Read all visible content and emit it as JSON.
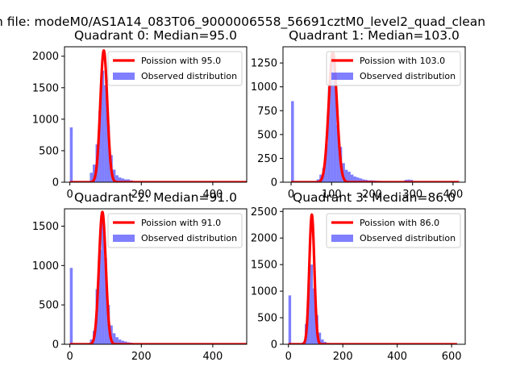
{
  "figure": {
    "suptitle": "n file: modeM0/AS1A14_083T06_9000006558_56691cztM0_level2_quad_clean"
  },
  "colors": {
    "poisson": "#ff0000",
    "observed": "#0000ff"
  },
  "chart_data": [
    {
      "type": "bar",
      "title": "Quadrant 0: Median=95.0",
      "median": 95,
      "xlim": [
        -15,
        495
      ],
      "ylim": [
        0,
        2150
      ],
      "xticks": [
        0,
        200,
        400
      ],
      "yticks": [
        0,
        500,
        1000,
        1500,
        2000
      ],
      "legend": {
        "placement": "top-right",
        "entries": [
          "Poission with 95.0",
          "Observed distribution"
        ]
      },
      "poisson": {
        "name": "Poission with 95.0",
        "lambda": 95,
        "x_range": [
          0,
          495
        ],
        "peak": 2090
      },
      "observed": {
        "name": "Observed distribution",
        "bin_width": 8,
        "bins": [
          [
            0,
            870
          ],
          [
            8,
            8
          ],
          [
            16,
            10
          ],
          [
            24,
            12
          ],
          [
            56,
            150
          ],
          [
            64,
            280
          ],
          [
            72,
            600
          ],
          [
            80,
            1130
          ],
          [
            88,
            1770
          ],
          [
            96,
            1540
          ],
          [
            104,
            900
          ],
          [
            112,
            430
          ],
          [
            120,
            200
          ],
          [
            128,
            110
          ],
          [
            136,
            75
          ],
          [
            144,
            60
          ],
          [
            152,
            45
          ],
          [
            160,
            45
          ],
          [
            168,
            30
          ],
          [
            176,
            20
          ],
          [
            184,
            12
          ],
          [
            192,
            8
          ],
          [
            200,
            5
          ],
          [
            208,
            4
          ],
          [
            216,
            3
          ],
          [
            224,
            2
          ],
          [
            240,
            2
          ],
          [
            272,
            2
          ],
          [
            320,
            1
          ],
          [
            400,
            1
          ]
        ]
      }
    },
    {
      "type": "bar",
      "title": "Quadrant 1: Median=103.0",
      "median": 103,
      "xlim": [
        -20,
        430
      ],
      "ylim": [
        0,
        1420
      ],
      "xticks": [
        0,
        100,
        200,
        300,
        400
      ],
      "yticks": [
        0,
        250,
        500,
        750,
        1000,
        1250
      ],
      "legend": {
        "placement": "top-right",
        "entries": [
          "Poission with 103.0",
          "Observed distribution"
        ]
      },
      "poisson": {
        "name": "Poission with 103.0",
        "lambda": 103,
        "x_range": [
          0,
          415
        ],
        "peak": 1360
      },
      "observed": {
        "name": "Observed distribution",
        "bin_width": 7,
        "bins": [
          [
            0,
            850
          ],
          [
            7,
            8
          ],
          [
            14,
            5
          ],
          [
            21,
            4
          ],
          [
            56,
            10
          ],
          [
            63,
            30
          ],
          [
            70,
            80
          ],
          [
            77,
            150
          ],
          [
            84,
            400
          ],
          [
            91,
            1000
          ],
          [
            98,
            1300
          ],
          [
            105,
            1140
          ],
          [
            112,
            600
          ],
          [
            119,
            370
          ],
          [
            126,
            200
          ],
          [
            133,
            130
          ],
          [
            140,
            110
          ],
          [
            147,
            80
          ],
          [
            154,
            60
          ],
          [
            161,
            50
          ],
          [
            168,
            40
          ],
          [
            175,
            30
          ],
          [
            182,
            25
          ],
          [
            189,
            20
          ],
          [
            196,
            20
          ],
          [
            203,
            18
          ],
          [
            210,
            15
          ],
          [
            217,
            14
          ],
          [
            224,
            13
          ],
          [
            231,
            12
          ],
          [
            238,
            12
          ],
          [
            245,
            11
          ],
          [
            252,
            10
          ],
          [
            259,
            10
          ],
          [
            266,
            10
          ],
          [
            273,
            10
          ],
          [
            280,
            25
          ],
          [
            287,
            28
          ],
          [
            294,
            25
          ],
          [
            301,
            12
          ],
          [
            308,
            8
          ],
          [
            315,
            6
          ],
          [
            322,
            5
          ],
          [
            329,
            4
          ],
          [
            336,
            3
          ],
          [
            343,
            2
          ]
        ]
      }
    },
    {
      "type": "bar",
      "title": "Quadrant 2: Median=91.0",
      "median": 91,
      "xlim": [
        -15,
        495
      ],
      "ylim": [
        0,
        1720
      ],
      "xticks": [
        0,
        200,
        400
      ],
      "yticks": [
        0,
        500,
        1000,
        1500
      ],
      "legend": {
        "placement": "top-right",
        "entries": [
          "Poission with 91.0",
          "Observed distribution"
        ]
      },
      "poisson": {
        "name": "Poission with 91.0",
        "lambda": 91,
        "x_range": [
          0,
          495
        ],
        "peak": 1680
      },
      "observed": {
        "name": "Observed distribution",
        "bin_width": 8,
        "bins": [
          [
            0,
            970
          ],
          [
            8,
            10
          ],
          [
            16,
            8
          ],
          [
            24,
            6
          ],
          [
            48,
            10
          ],
          [
            56,
            60
          ],
          [
            64,
            170
          ],
          [
            72,
            700
          ],
          [
            80,
            1200
          ],
          [
            88,
            1650
          ],
          [
            96,
            1100
          ],
          [
            104,
            500
          ],
          [
            112,
            240
          ],
          [
            120,
            140
          ],
          [
            128,
            90
          ],
          [
            136,
            60
          ],
          [
            144,
            45
          ],
          [
            152,
            35
          ],
          [
            160,
            25
          ],
          [
            168,
            20
          ],
          [
            176,
            15
          ],
          [
            184,
            12
          ],
          [
            192,
            10
          ],
          [
            200,
            5
          ],
          [
            216,
            3
          ],
          [
            240,
            2
          ],
          [
            280,
            2
          ],
          [
            320,
            1
          ],
          [
            400,
            1
          ]
        ]
      }
    },
    {
      "type": "bar",
      "title": "Quadrant 3: Median=86.0",
      "median": 86,
      "xlim": [
        -20,
        650
      ],
      "ylim": [
        0,
        2550
      ],
      "xticks": [
        0,
        200,
        400,
        600
      ],
      "yticks": [
        0,
        500,
        1000,
        1500,
        2000,
        2500
      ],
      "legend": {
        "placement": "top-right",
        "entries": [
          "Poission with 86.0",
          "Observed distribution"
        ]
      },
      "poisson": {
        "name": "Poission with 86.0",
        "lambda": 86,
        "x_range": [
          0,
          620
        ],
        "peak": 2440
      },
      "observed": {
        "name": "Observed distribution",
        "bin_width": 10,
        "bins": [
          [
            0,
            920
          ],
          [
            10,
            10
          ],
          [
            20,
            8
          ],
          [
            30,
            5
          ],
          [
            50,
            40
          ],
          [
            60,
            380
          ],
          [
            70,
            1150
          ],
          [
            80,
            1500
          ],
          [
            90,
            1050
          ],
          [
            100,
            550
          ],
          [
            110,
            220
          ],
          [
            120,
            90
          ],
          [
            130,
            45
          ],
          [
            140,
            25
          ],
          [
            150,
            15
          ],
          [
            160,
            10
          ],
          [
            170,
            7
          ],
          [
            180,
            5
          ],
          [
            190,
            4
          ],
          [
            200,
            3
          ],
          [
            220,
            2
          ],
          [
            260,
            2
          ],
          [
            300,
            1
          ]
        ]
      }
    }
  ]
}
